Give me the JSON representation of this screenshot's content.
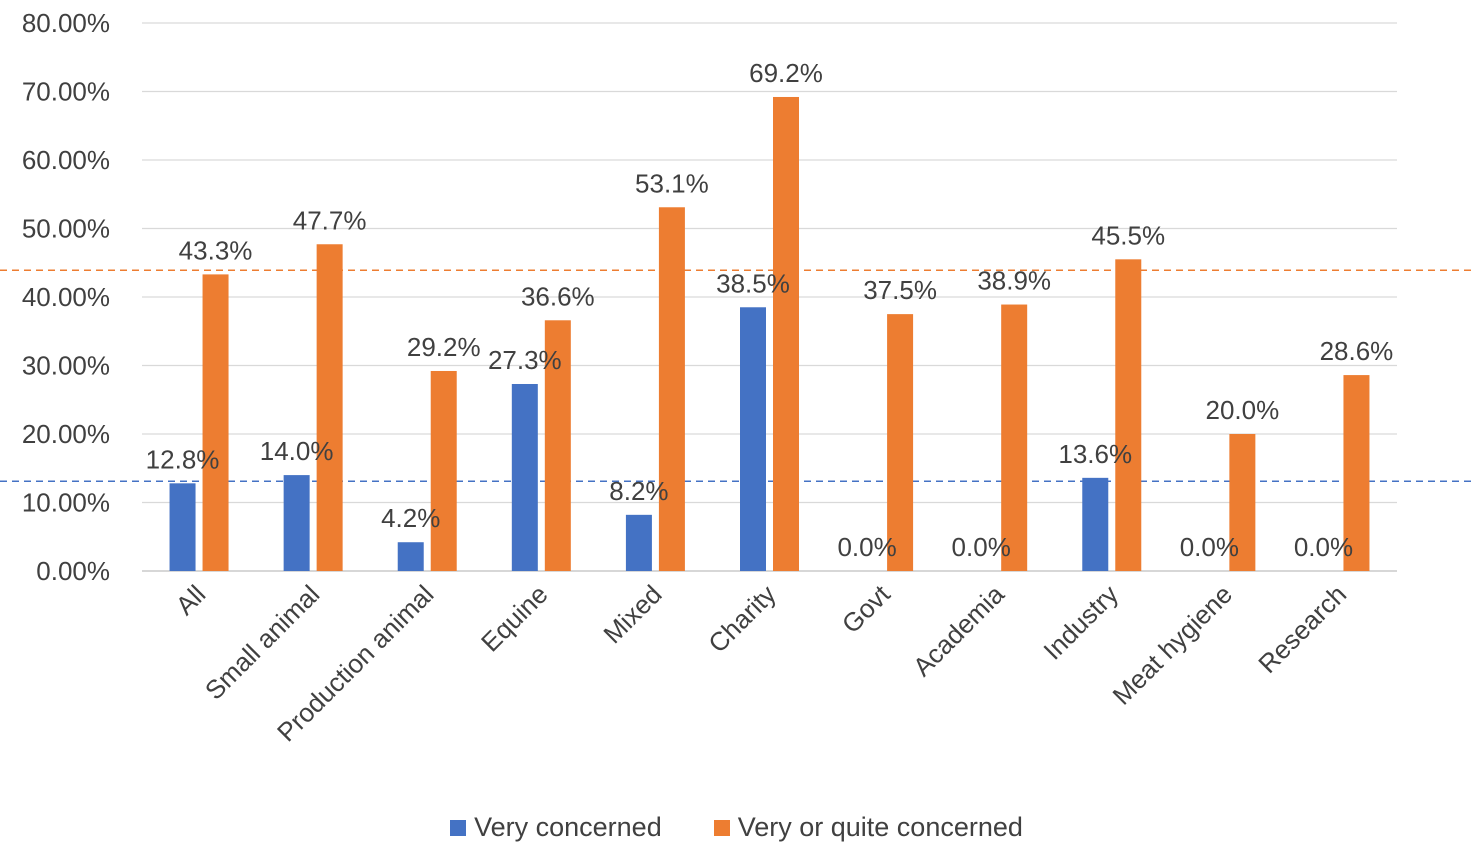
{
  "chart_data": {
    "type": "bar",
    "title": "",
    "xlabel": "",
    "ylabel": "",
    "ylim": [
      0,
      0.8
    ],
    "y_ticks": [
      "0.00%",
      "10.00%",
      "20.00%",
      "30.00%",
      "40.00%",
      "50.00%",
      "60.00%",
      "70.00%",
      "80.00%"
    ],
    "grid": true,
    "legend_position": "bottom",
    "categories": [
      "All",
      "Small animal",
      "Production animal",
      "Equine",
      "Mixed",
      "Charity",
      "Govt",
      "Academia",
      "Industry",
      "Meat hygiene",
      "Research"
    ],
    "series": [
      {
        "name": "Very concerned",
        "color": "#4472C4",
        "values": [
          0.128,
          0.14,
          0.042,
          0.273,
          0.082,
          0.385,
          0.0,
          0.0,
          0.136,
          0.0,
          0.0
        ],
        "labels": [
          "12.8%",
          "14.0%",
          "4.2%",
          "27.3%",
          "8.2%",
          "38.5%",
          "0.0%",
          "0.0%",
          "13.6%",
          "0.0%",
          "0.0%"
        ],
        "reference_line": 0.131
      },
      {
        "name": "Very or quite concerned",
        "color": "#ED7D31",
        "values": [
          0.433,
          0.477,
          0.292,
          0.366,
          0.531,
          0.692,
          0.375,
          0.389,
          0.455,
          0.2,
          0.286
        ],
        "labels": [
          "43.3%",
          "47.7%",
          "29.2%",
          "36.6%",
          "53.1%",
          "69.2%",
          "37.5%",
          "38.9%",
          "45.5%",
          "20.0%",
          "28.6%"
        ],
        "reference_line": 0.439
      }
    ]
  }
}
